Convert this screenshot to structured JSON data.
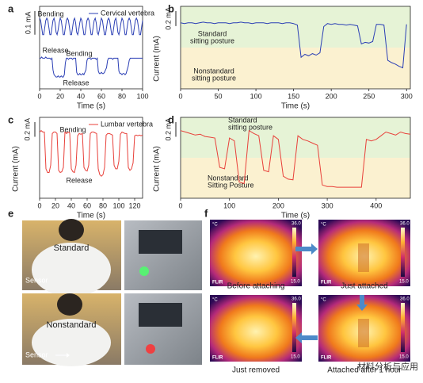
{
  "panel_labels": [
    "a",
    "b",
    "c",
    "d",
    "e",
    "f"
  ],
  "chart_data": [
    {
      "type": "line",
      "xlabel": "Time (s)",
      "xlim": [
        0,
        100
      ],
      "xticks": [
        0,
        20,
        40,
        60,
        80,
        100
      ],
      "ylim": [
        0,
        0.35
      ],
      "scale_bar": {
        "value": 0.1,
        "label": "0.1 mA"
      },
      "legend": "upper right",
      "x": [
        0,
        1,
        2,
        3,
        4,
        5,
        6,
        7,
        8,
        9,
        10,
        11,
        12,
        13,
        14,
        15,
        16,
        17,
        18,
        19,
        20,
        21,
        22,
        23,
        24,
        25,
        26,
        27,
        28,
        29,
        30,
        31,
        32,
        33,
        34,
        35,
        36,
        37,
        38,
        39,
        40,
        41,
        42,
        43,
        44,
        45,
        46,
        47,
        48,
        49,
        50,
        51,
        52,
        53,
        54,
        55,
        56,
        57,
        58,
        59,
        60,
        61,
        62,
        63,
        64,
        65,
        66,
        67,
        68,
        69,
        70,
        71,
        72,
        73,
        74,
        75,
        76,
        77,
        78,
        79,
        80,
        81,
        82,
        83,
        84,
        85,
        86,
        87,
        88,
        89,
        90,
        91,
        92,
        93,
        94,
        95,
        96,
        97,
        98,
        99,
        100
      ],
      "series": [
        {
          "name": "Cervical vertebra",
          "color": "#2b3fb5",
          "values": [
            0.3,
            0.29,
            0.26,
            0.23,
            0.23,
            0.26,
            0.29,
            0.3,
            0.29,
            0.26,
            0.23,
            0.23,
            0.26,
            0.29,
            0.3,
            0.28,
            0.24,
            0.23,
            0.25,
            0.28,
            0.3,
            0.29,
            0.26,
            0.23,
            0.23,
            0.26,
            0.29,
            0.3,
            0.29,
            0.26,
            0.23,
            0.23,
            0.26,
            0.29,
            0.3,
            0.28,
            0.24,
            0.23,
            0.25,
            0.28,
            0.3,
            0.29,
            0.26,
            0.23,
            0.23,
            0.26,
            0.29,
            0.3,
            0.29,
            0.26,
            0.23,
            0.23,
            0.26,
            0.29,
            0.3,
            0.28,
            0.24,
            0.23,
            0.25,
            0.28,
            0.3,
            0.29,
            0.26,
            0.23,
            0.23,
            0.26,
            0.29,
            0.3,
            0.29,
            0.26,
            0.23,
            0.23,
            0.26,
            0.29,
            0.3,
            0.28,
            0.24,
            0.23,
            0.25,
            0.28,
            0.3,
            0.29,
            0.26,
            0.23,
            0.23,
            0.26,
            0.29,
            0.3,
            0.29,
            0.26,
            0.23,
            0.23,
            0.26,
            0.29,
            0.3,
            0.29,
            0.26,
            0.23,
            0.23,
            0.26,
            0.29
          ]
        },
        {
          "color": "#2b3fb5",
          "values": [
            0.13,
            0.13,
            0.135,
            0.13,
            0.13,
            0.13,
            0.135,
            0.13,
            0.13,
            0.13,
            0.13,
            0.125,
            0.13,
            0.08,
            0.06,
            0.055,
            0.05,
            0.05,
            0.055,
            0.05,
            0.05,
            0.055,
            0.05,
            0.05,
            0.06,
            0.11,
            0.13,
            0.13,
            0.125,
            0.13,
            0.13,
            0.13,
            0.125,
            0.13,
            0.13,
            0.13,
            0.07,
            0.06,
            0.06,
            0.065,
            0.06,
            0.06,
            0.065,
            0.06,
            0.07,
            0.08,
            0.12,
            0.13,
            0.13,
            0.13,
            0.125,
            0.13,
            0.13,
            0.13,
            0.13,
            0.125,
            0.13,
            0.075,
            0.065,
            0.065,
            0.07,
            0.065,
            0.065,
            0.07,
            0.08,
            0.09,
            0.12,
            0.13,
            0.13,
            0.13,
            0.13,
            0.125,
            0.13,
            0.13,
            0.13,
            0.13,
            0.13,
            0.075,
            0.065,
            0.065,
            0.06,
            0.065,
            0.065,
            0.06,
            0.065,
            0.08,
            0.095,
            0.12,
            0.13,
            0.13,
            0.13,
            0.13,
            0.13,
            0.13,
            0.13,
            0.13,
            0.13,
            0.13,
            0.13,
            0.13,
            0.13
          ]
        }
      ],
      "annotations": [
        "Bending",
        "Release",
        "Bending",
        "Release"
      ]
    },
    {
      "type": "line",
      "xlabel": "Time (s)",
      "ylabel": "Current (mA)",
      "xlim": [
        0,
        305
      ],
      "xticks": [
        0,
        50,
        100,
        150,
        200,
        250,
        300
      ],
      "ylim": [
        0,
        1.1
      ],
      "scale_bar": {
        "value": 0.2,
        "label": "0.2 mA"
      },
      "x": [
        0,
        5,
        10,
        15,
        20,
        25,
        30,
        35,
        40,
        45,
        50,
        55,
        60,
        65,
        70,
        75,
        80,
        85,
        90,
        95,
        100,
        105,
        110,
        115,
        120,
        125,
        130,
        135,
        140,
        145,
        150,
        155,
        160,
        165,
        170,
        175,
        180,
        185,
        190,
        195,
        200,
        205,
        210,
        215,
        220,
        225,
        230,
        235,
        240,
        245,
        250,
        255,
        260,
        265,
        270,
        275,
        280,
        285,
        290,
        295,
        300
      ],
      "series": [
        {
          "color": "#2b3fb5",
          "values": [
            0.88,
            0.87,
            0.88,
            0.88,
            0.87,
            0.88,
            0.89,
            0.88,
            0.88,
            0.87,
            0.88,
            0.88,
            0.88,
            0.87,
            0.88,
            0.88,
            0.89,
            0.88,
            0.88,
            0.87,
            0.88,
            0.88,
            0.88,
            0.87,
            0.88,
            0.88,
            0.88,
            0.87,
            0.88,
            0.88,
            0.87,
            0.85,
            0.42,
            0.46,
            0.44,
            0.47,
            0.45,
            0.48,
            0.83,
            0.87,
            0.86,
            0.87,
            0.86,
            0.86,
            0.85,
            0.86,
            0.85,
            0.84,
            0.6,
            0.62,
            0.61,
            0.63,
            0.86,
            0.86,
            0.85,
            0.38,
            0.35,
            0.33,
            0.3,
            0.28,
            0.86
          ]
        }
      ],
      "zones": [
        [
          "Standard",
          "sitting posture"
        ],
        [
          "Nonstandard",
          "sitting posture"
        ]
      ]
    },
    {
      "type": "line",
      "xlabel": "Time (s)",
      "ylabel": "Current (mA)",
      "xlim": [
        0,
        130
      ],
      "xticks": [
        0,
        20,
        40,
        60,
        80,
        100,
        120
      ],
      "ylim": [
        0,
        1.1
      ],
      "scale_bar": {
        "value": 0.2,
        "label": "0.2 mA"
      },
      "legend": "upper right",
      "x": [
        0,
        2,
        4,
        6,
        8,
        10,
        12,
        14,
        16,
        18,
        20,
        22,
        24,
        26,
        28,
        30,
        32,
        34,
        36,
        38,
        40,
        42,
        44,
        46,
        48,
        50,
        52,
        54,
        56,
        58,
        60,
        62,
        64,
        66,
        68,
        70,
        72,
        74,
        76,
        78,
        80,
        82,
        84,
        86,
        88,
        90,
        92,
        94,
        96,
        98,
        100,
        102,
        104,
        106,
        108,
        110,
        112,
        114,
        116,
        118,
        120,
        122,
        124,
        126,
        128,
        130
      ],
      "series": [
        {
          "name": "Lumbar vertebra",
          "color": "#e8403a",
          "values": [
            0.9,
            0.92,
            0.9,
            0.9,
            0.4,
            0.35,
            0.35,
            0.45,
            0.88,
            0.9,
            0.9,
            0.88,
            0.38,
            0.35,
            0.36,
            0.42,
            0.9,
            0.88,
            0.9,
            0.89,
            0.4,
            0.36,
            0.35,
            0.45,
            0.85,
            0.88,
            0.87,
            0.88,
            0.42,
            0.38,
            0.37,
            0.45,
            0.88,
            0.9,
            0.9,
            0.89,
            0.88,
            0.4,
            0.32,
            0.3,
            0.32,
            0.42,
            0.86,
            0.88,
            0.88,
            0.87,
            0.86,
            0.45,
            0.4,
            0.4,
            0.5,
            0.87,
            0.9,
            0.89,
            0.88,
            0.88,
            0.42,
            0.38,
            0.4,
            0.48,
            0.85,
            0.86,
            0.85,
            0.86,
            0.85,
            0.86
          ]
        }
      ],
      "annotations": [
        "Bending",
        "Release"
      ]
    },
    {
      "type": "line",
      "xlabel": "Time (s)",
      "ylabel": "Current (mA)",
      "xlim": [
        0,
        470
      ],
      "xticks": [
        0,
        100,
        200,
        300,
        400
      ],
      "ylim": [
        0,
        1.1
      ],
      "scale_bar": {
        "value": 0.2,
        "label": "0.2 mA"
      },
      "x": [
        0,
        10,
        20,
        30,
        40,
        50,
        60,
        70,
        80,
        90,
        100,
        110,
        120,
        130,
        140,
        150,
        160,
        170,
        180,
        190,
        200,
        210,
        220,
        230,
        240,
        250,
        260,
        270,
        280,
        290,
        300,
        310,
        320,
        330,
        340,
        350,
        360,
        370,
        380,
        390,
        400,
        410,
        420,
        430,
        440,
        450,
        460,
        470
      ],
      "series": [
        {
          "color": "#e8403a",
          "values": [
            0.92,
            0.9,
            0.88,
            0.86,
            0.87,
            0.84,
            0.83,
            0.82,
            0.42,
            0.4,
            0.82,
            0.78,
            0.22,
            0.2,
            0.92,
            0.88,
            0.85,
            0.38,
            0.36,
            0.85,
            0.8,
            0.3,
            0.26,
            0.25,
            0.85,
            0.8,
            0.78,
            0.75,
            0.72,
            0.18,
            0.16,
            0.16,
            0.15,
            0.15,
            0.15,
            0.15,
            0.15,
            0.15,
            0.8,
            0.78,
            0.8,
            0.85,
            0.9,
            0.88,
            0.86,
            0.9,
            0.88,
            0.87
          ]
        }
      ],
      "zones": [
        [
          "Standard",
          "sitting posture"
        ],
        [
          "Nonstandard",
          "Sitting Posture"
        ]
      ]
    }
  ],
  "photos": {
    "e": {
      "labels": [
        "Standard",
        "Sensor",
        "Nonstandard",
        "Sensor"
      ]
    },
    "f": {
      "captions": [
        "Before attaching",
        "Just attached",
        "Attached after 1 hour",
        "Just removed"
      ],
      "scale_unit": "°C",
      "scale_max": "36.0",
      "scale_min": "15.0",
      "brand": "FLIR"
    }
  },
  "watermark": "材料分析与应用"
}
